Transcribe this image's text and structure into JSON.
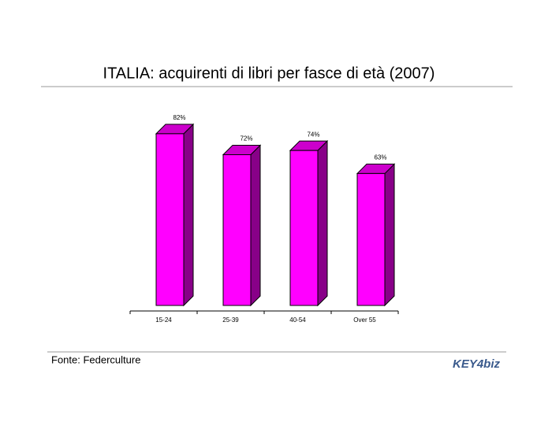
{
  "chart_data": {
    "type": "bar3d",
    "title": "ITALIA: acquirenti di libri per fasce di età (2007)",
    "categories": [
      "15-24",
      "25-39",
      "40-54",
      "Over 55"
    ],
    "values": [
      82,
      72,
      74,
      63
    ],
    "value_labels": [
      "82%",
      "72%",
      "74%",
      "63%"
    ],
    "color": "#ff00ff"
  },
  "footer": {
    "source": "Fonte: Federculture",
    "logo": "KEY4biz"
  }
}
